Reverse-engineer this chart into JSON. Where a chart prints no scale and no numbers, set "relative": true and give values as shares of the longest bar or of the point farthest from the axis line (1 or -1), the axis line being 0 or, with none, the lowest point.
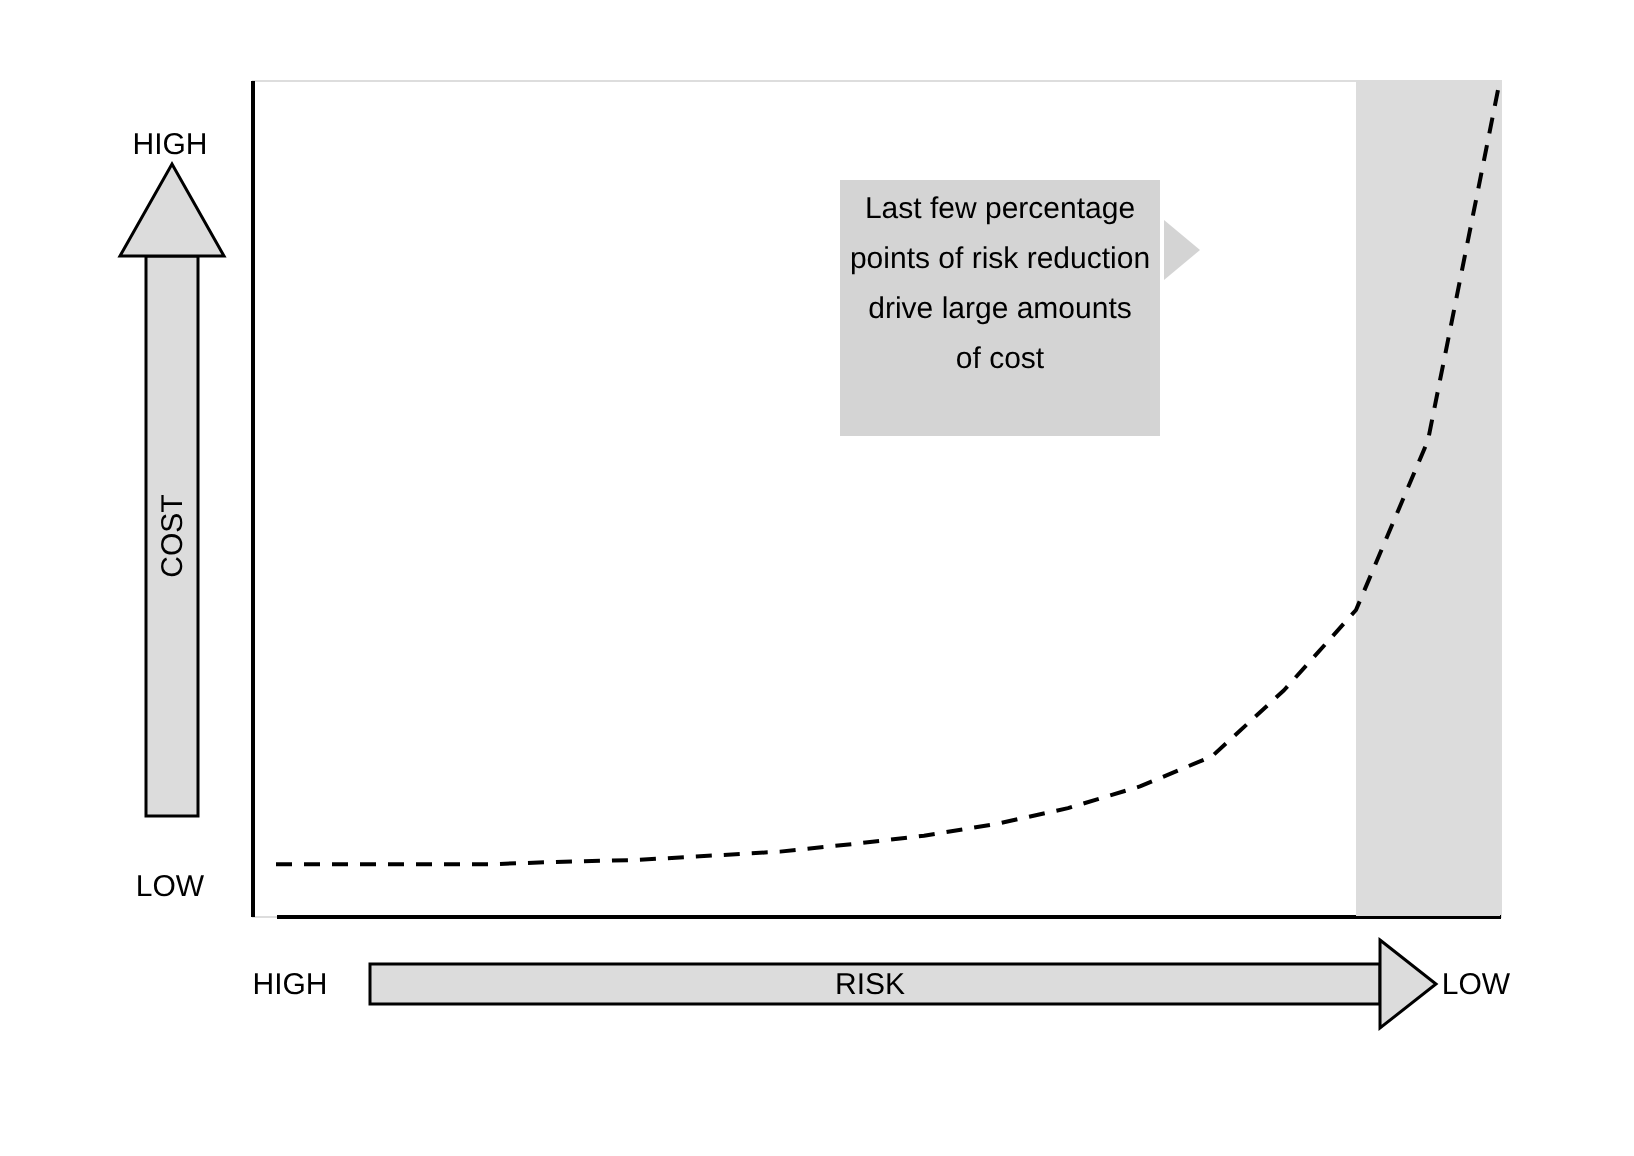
{
  "chart_data": {
    "type": "line",
    "relative": true,
    "xlabel": "RISK",
    "ylabel": "COST",
    "annotations": [
      "HIGH",
      "LOW",
      "HIGH",
      "LOW",
      "Last few percentage\npoints of risk reduction\ndrive large amounts\nof cost"
    ],
    "categories": [
      null,
      null,
      null,
      null,
      null,
      null,
      null,
      null,
      null,
      null,
      null,
      null,
      null,
      null,
      null,
      null,
      null,
      null
    ],
    "series": [
      {
        "color": "#000000",
        "values": [
          0.062,
          0.062,
          0.062,
          0.062,
          0.065,
          0.067,
          0.072,
          0.077,
          0.086,
          0.096,
          0.11,
          0.129,
          0.155,
          0.191,
          0.27,
          0.366,
          0.569,
          1.0
        ]
      }
    ],
    "line_style": "dashed"
  }
}
